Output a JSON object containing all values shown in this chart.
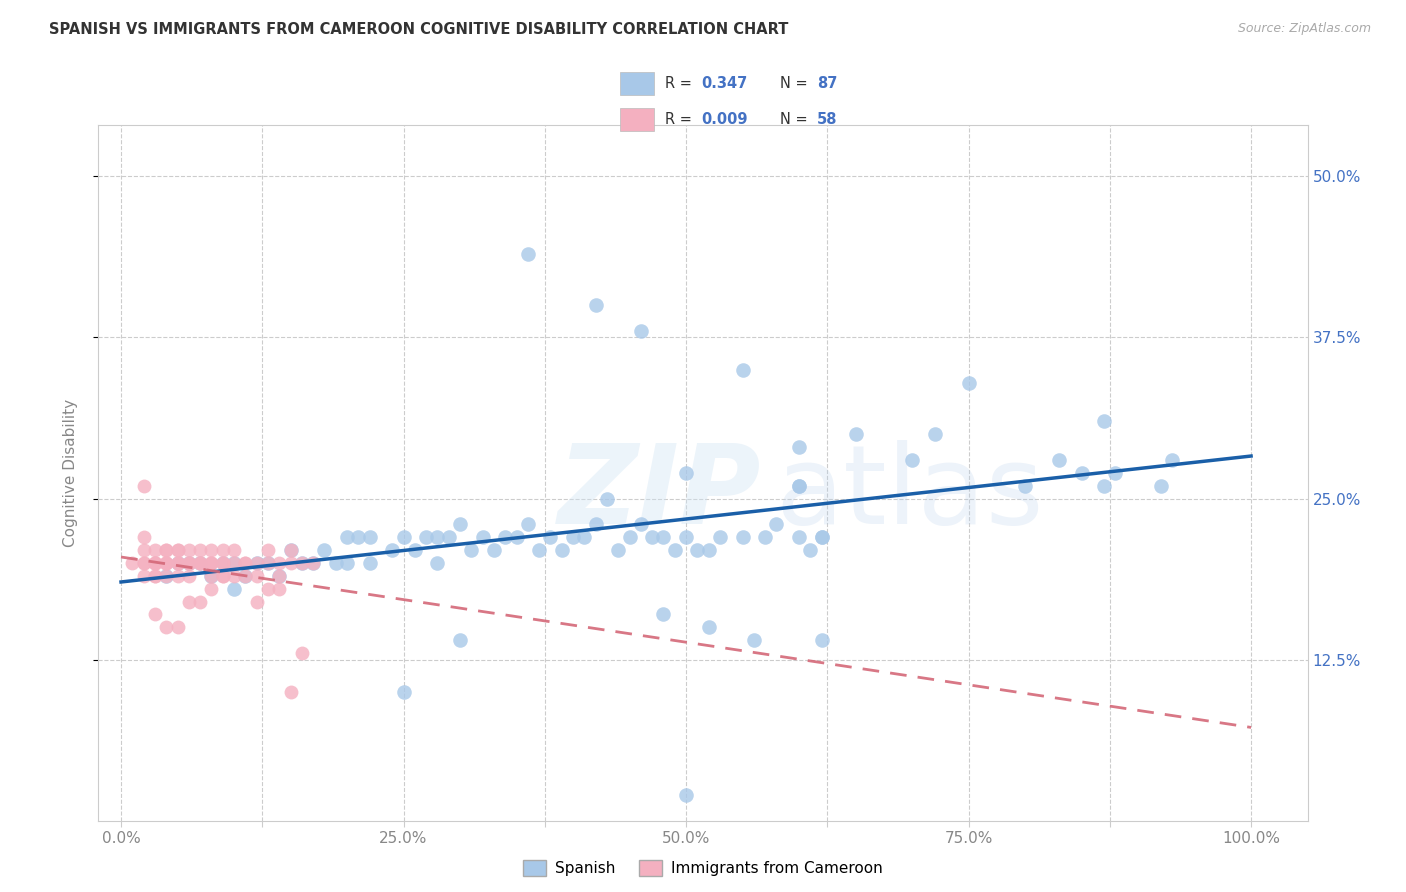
{
  "title": "SPANISH VS IMMIGRANTS FROM CAMEROON COGNITIVE DISABILITY CORRELATION CHART",
  "source": "Source: ZipAtlas.com",
  "ylabel_label": "Cognitive Disability",
  "x_tick_vals": [
    0.0,
    0.125,
    0.25,
    0.375,
    0.5,
    0.625,
    0.75,
    0.875,
    1.0
  ],
  "x_tick_labels": [
    "0.0%",
    "",
    "25.0%",
    "",
    "50.0%",
    "",
    "75.0%",
    "",
    "100.0%"
  ],
  "y_tick_vals": [
    0.125,
    0.25,
    0.375,
    0.5
  ],
  "y_tick_labels": [
    "12.5%",
    "25.0%",
    "37.5%",
    "50.0%"
  ],
  "xlim": [
    -0.02,
    1.05
  ],
  "ylim": [
    0.0,
    0.54
  ],
  "blue_scatter": "#a8c8e8",
  "pink_scatter": "#f4b0c0",
  "line_blue": "#1a5fa8",
  "line_pink": "#d46878",
  "bg_color": "#ffffff",
  "grid_color": "#cccccc",
  "title_color": "#333333",
  "axis_label_color": "#888888",
  "right_tick_color": "#4472C4",
  "legend_val_color": "#4472C4",
  "spanish_x": [
    0.04,
    0.05,
    0.06,
    0.07,
    0.08,
    0.09,
    0.1,
    0.1,
    0.11,
    0.12,
    0.13,
    0.14,
    0.15,
    0.16,
    0.17,
    0.18,
    0.19,
    0.2,
    0.2,
    0.21,
    0.22,
    0.22,
    0.24,
    0.25,
    0.26,
    0.27,
    0.28,
    0.28,
    0.29,
    0.3,
    0.31,
    0.32,
    0.33,
    0.34,
    0.35,
    0.36,
    0.37,
    0.38,
    0.39,
    0.4,
    0.41,
    0.42,
    0.43,
    0.44,
    0.45,
    0.46,
    0.47,
    0.48,
    0.49,
    0.5,
    0.51,
    0.52,
    0.53,
    0.55,
    0.57,
    0.58,
    0.6,
    0.6,
    0.61,
    0.62,
    0.36,
    0.42,
    0.46,
    0.5,
    0.55,
    0.6,
    0.6,
    0.62,
    0.65,
    0.7,
    0.72,
    0.75,
    0.8,
    0.83,
    0.85,
    0.87,
    0.87,
    0.88,
    0.92,
    0.93,
    0.48,
    0.52,
    0.56,
    0.62,
    0.3,
    0.25,
    0.5
  ],
  "spanish_y": [
    0.19,
    0.2,
    0.2,
    0.2,
    0.19,
    0.2,
    0.2,
    0.18,
    0.19,
    0.2,
    0.2,
    0.19,
    0.21,
    0.2,
    0.2,
    0.21,
    0.2,
    0.22,
    0.2,
    0.22,
    0.22,
    0.2,
    0.21,
    0.22,
    0.21,
    0.22,
    0.22,
    0.2,
    0.22,
    0.23,
    0.21,
    0.22,
    0.21,
    0.22,
    0.22,
    0.23,
    0.21,
    0.22,
    0.21,
    0.22,
    0.22,
    0.23,
    0.25,
    0.21,
    0.22,
    0.23,
    0.22,
    0.22,
    0.21,
    0.22,
    0.21,
    0.21,
    0.22,
    0.22,
    0.22,
    0.23,
    0.26,
    0.22,
    0.21,
    0.22,
    0.44,
    0.4,
    0.38,
    0.27,
    0.35,
    0.29,
    0.26,
    0.22,
    0.3,
    0.28,
    0.3,
    0.34,
    0.26,
    0.28,
    0.27,
    0.26,
    0.31,
    0.27,
    0.26,
    0.28,
    0.16,
    0.15,
    0.14,
    0.14,
    0.14,
    0.1,
    0.02
  ],
  "cameroon_x": [
    0.01,
    0.02,
    0.02,
    0.02,
    0.02,
    0.02,
    0.03,
    0.03,
    0.03,
    0.03,
    0.03,
    0.03,
    0.03,
    0.04,
    0.04,
    0.04,
    0.04,
    0.04,
    0.04,
    0.04,
    0.05,
    0.05,
    0.05,
    0.05,
    0.05,
    0.05,
    0.06,
    0.06,
    0.06,
    0.06,
    0.06,
    0.07,
    0.07,
    0.07,
    0.07,
    0.08,
    0.08,
    0.08,
    0.08,
    0.08,
    0.09,
    0.09,
    0.09,
    0.09,
    0.1,
    0.1,
    0.11,
    0.11,
    0.12,
    0.12,
    0.13,
    0.13,
    0.14,
    0.14,
    0.15,
    0.15,
    0.16,
    0.17
  ],
  "cameroon_y": [
    0.2,
    0.19,
    0.2,
    0.21,
    0.22,
    0.2,
    0.19,
    0.2,
    0.2,
    0.21,
    0.2,
    0.19,
    0.2,
    0.2,
    0.2,
    0.21,
    0.19,
    0.2,
    0.21,
    0.2,
    0.2,
    0.21,
    0.19,
    0.2,
    0.2,
    0.21,
    0.2,
    0.2,
    0.21,
    0.2,
    0.19,
    0.2,
    0.2,
    0.21,
    0.2,
    0.2,
    0.19,
    0.2,
    0.21,
    0.2,
    0.2,
    0.21,
    0.19,
    0.2,
    0.2,
    0.21,
    0.2,
    0.2,
    0.2,
    0.19,
    0.2,
    0.21,
    0.2,
    0.19,
    0.2,
    0.21,
    0.2,
    0.2
  ],
  "cameroon_extra_x": [
    0.02,
    0.03,
    0.04,
    0.05,
    0.06,
    0.07,
    0.08,
    0.09,
    0.1,
    0.11,
    0.12,
    0.13,
    0.14,
    0.15,
    0.16
  ],
  "cameroon_extra_y": [
    0.26,
    0.16,
    0.15,
    0.15,
    0.17,
    0.17,
    0.18,
    0.19,
    0.19,
    0.19,
    0.17,
    0.18,
    0.18,
    0.1,
    0.13
  ]
}
